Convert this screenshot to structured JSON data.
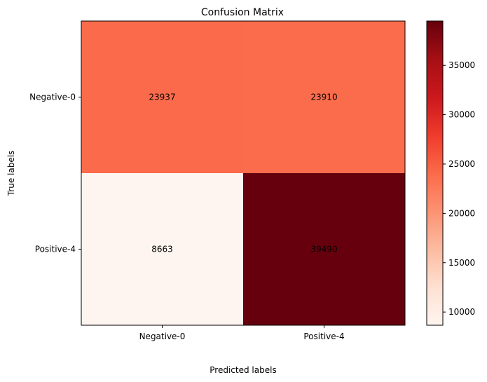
{
  "chart_data": {
    "type": "heatmap",
    "title": "Confusion Matrix",
    "xlabel": "Predicted labels",
    "ylabel": "True labels",
    "x_categories": [
      "Negative-0",
      "Positive-4"
    ],
    "y_categories": [
      "Negative-0",
      "Positive-4"
    ],
    "values": [
      [
        23937,
        23910
      ],
      [
        8663,
        39490
      ]
    ],
    "colormap": "Reds",
    "color_range": [
      8663,
      39490
    ],
    "colorbar_ticks": [
      10000,
      15000,
      20000,
      25000,
      30000,
      35000
    ],
    "colorbar_tick_labels": [
      "10000",
      "15000",
      "20000",
      "25000",
      "30000",
      "35000"
    ],
    "grid": false
  }
}
